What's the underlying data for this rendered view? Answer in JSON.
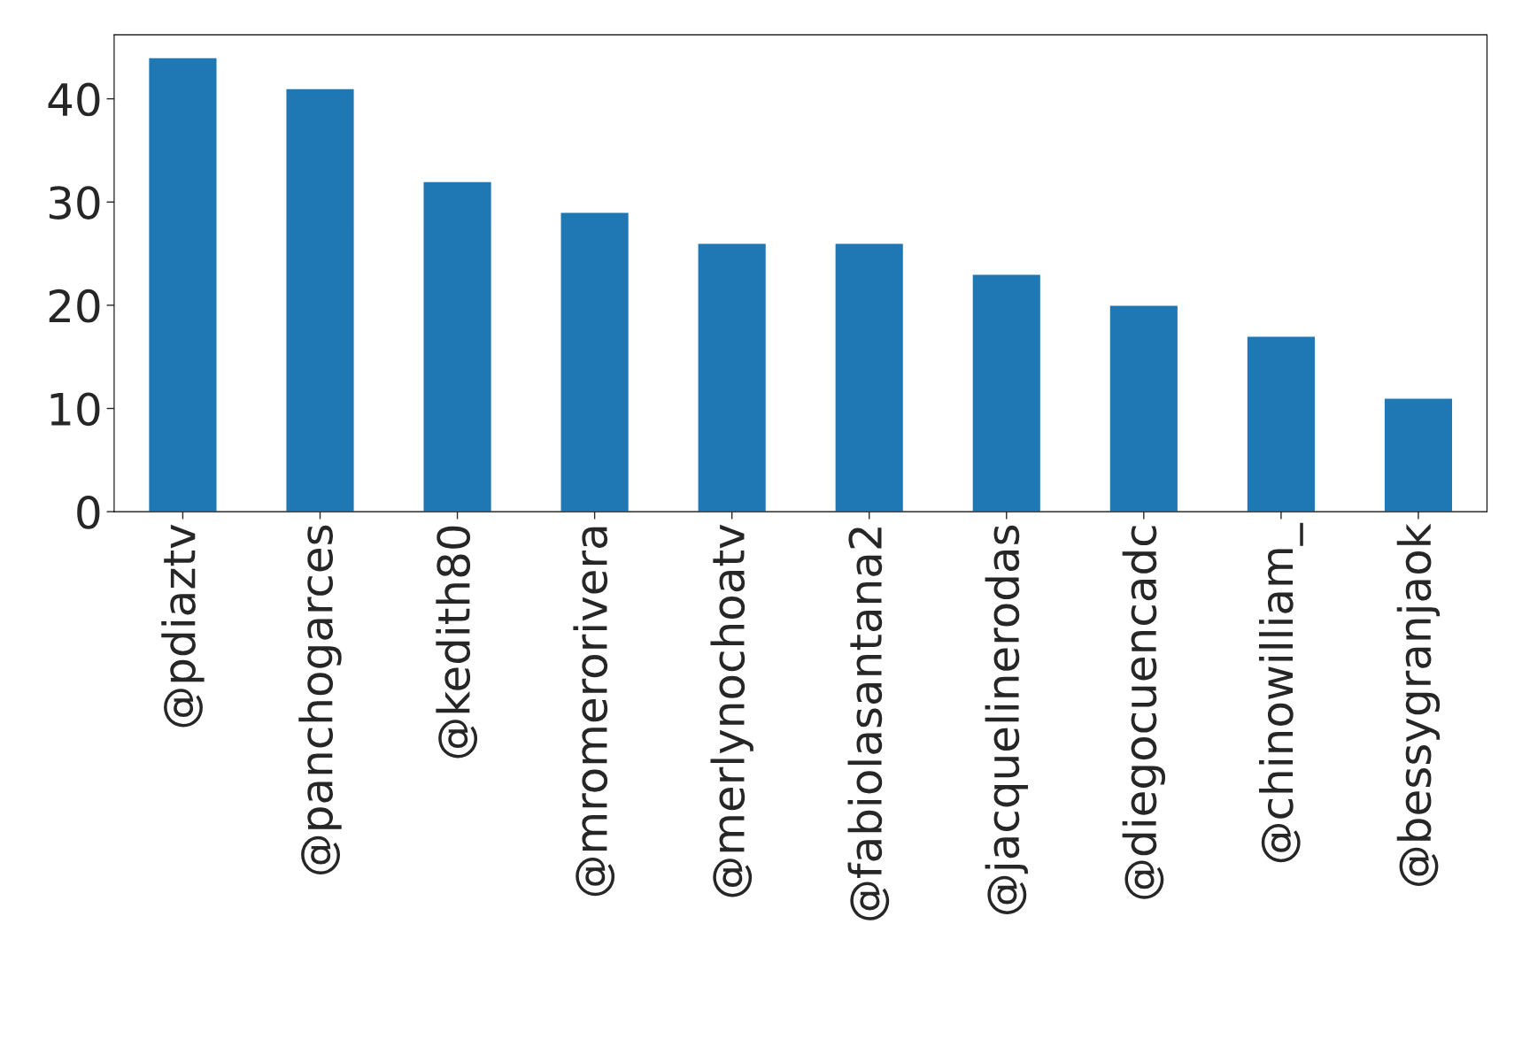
{
  "chart_data": {
    "type": "bar",
    "categories": [
      "@pdiaztv",
      "@panchogarces",
      "@kedith80",
      "@mromerorivera",
      "@merlynochoatv",
      "@fabiolasantana2",
      "@jacquelinerodas",
      "@diegocuencadc",
      "@chinowilliam_",
      "@bessygranjaok"
    ],
    "values": [
      44,
      41,
      32,
      29,
      26,
      26,
      23,
      20,
      17,
      11
    ],
    "color": "#1f77b4",
    "ylim": [
      0,
      46.2
    ],
    "yticks": [
      0,
      10,
      20,
      30,
      40
    ],
    "grid": false,
    "legend": false
  }
}
